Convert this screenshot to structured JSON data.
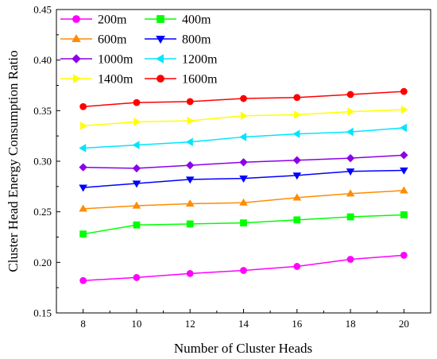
{
  "chart_data": {
    "type": "line",
    "title": "",
    "xlabel": "Number of Cluster Heads",
    "ylabel": "Cluster Head Energy Consumption Ratio",
    "x": [
      8,
      10,
      12,
      14,
      16,
      18,
      20
    ],
    "xlim": [
      7,
      21
    ],
    "ylim": [
      0.15,
      0.45
    ],
    "xticks": [
      "8",
      "10",
      "12",
      "14",
      "16",
      "18",
      "20"
    ],
    "yticks": [
      "0.15",
      "0.20",
      "0.25",
      "0.30",
      "0.35",
      "0.40",
      "0.45"
    ],
    "grid": false,
    "legend": "top-left",
    "series": [
      {
        "name": "200m",
        "color": "#ff00ff",
        "marker": "circle",
        "values": [
          0.182,
          0.185,
          0.189,
          0.192,
          0.196,
          0.203,
          0.207
        ]
      },
      {
        "name": "400m",
        "color": "#00ff00",
        "marker": "square",
        "values": [
          0.228,
          0.237,
          0.238,
          0.239,
          0.242,
          0.245,
          0.247
        ]
      },
      {
        "name": "600m",
        "color": "#ff8c00",
        "marker": "triangle-up",
        "values": [
          0.253,
          0.256,
          0.258,
          0.259,
          0.264,
          0.268,
          0.271
        ]
      },
      {
        "name": "800m",
        "color": "#0000ff",
        "marker": "triangle-down",
        "values": [
          0.274,
          0.278,
          0.282,
          0.283,
          0.286,
          0.29,
          0.291
        ]
      },
      {
        "name": "1000m",
        "color": "#8b00e8",
        "marker": "diamond",
        "values": [
          0.294,
          0.293,
          0.296,
          0.299,
          0.301,
          0.303,
          0.306
        ]
      },
      {
        "name": "1200m",
        "color": "#00e5ff",
        "marker": "triangle-left",
        "values": [
          0.313,
          0.316,
          0.319,
          0.324,
          0.327,
          0.329,
          0.333
        ]
      },
      {
        "name": "1400m",
        "color": "#ffff00",
        "marker": "triangle-right",
        "values": [
          0.335,
          0.339,
          0.34,
          0.345,
          0.346,
          0.349,
          0.351
        ]
      },
      {
        "name": "1600m",
        "color": "#ff0000",
        "marker": "circle",
        "values": [
          0.354,
          0.358,
          0.359,
          0.362,
          0.363,
          0.366,
          0.369
        ]
      }
    ]
  }
}
